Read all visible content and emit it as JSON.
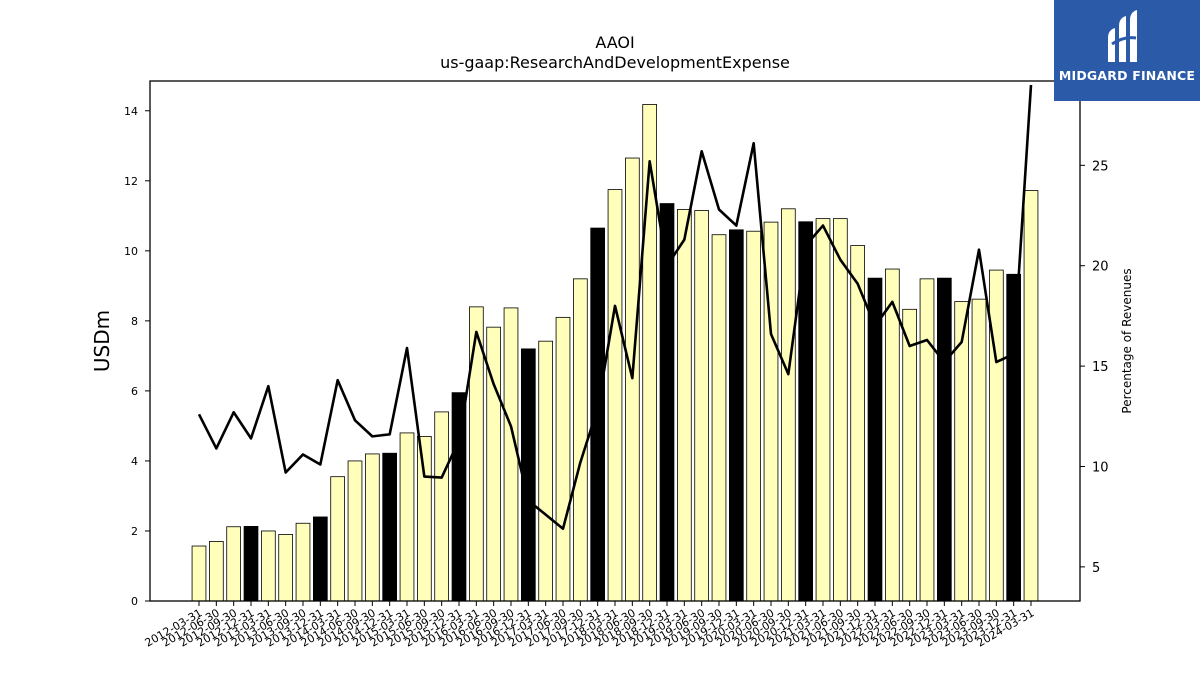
{
  "chart_data": {
    "type": "bar",
    "title": "AAOI",
    "subtitle": "us-gaap:ResearchAndDevelopmentExpense",
    "ylabel": "USDm",
    "y2label": "Percentage of Revenues",
    "ylim": [
      0,
      14.85
    ],
    "y2lim": [
      3.3,
      29.2
    ],
    "yticks": [
      "0",
      "2",
      "4",
      "6",
      "8",
      "10",
      "12",
      "14"
    ],
    "y2ticks": [
      "5",
      "10",
      "15",
      "20",
      "25"
    ],
    "categories": [
      "2012-03-31",
      "2012-06-30",
      "2012-09-30",
      "2012-12-31",
      "2013-03-31",
      "2013-06-30",
      "2013-09-30",
      "2013-12-31",
      "2014-03-31",
      "2014-06-30",
      "2014-09-30",
      "2014-12-31",
      "2015-03-31",
      "2015-06-30",
      "2015-09-30",
      "2015-12-31",
      "2016-03-31",
      "2016-06-30",
      "2016-09-30",
      "2016-12-31",
      "2017-03-31",
      "2017-06-30",
      "2017-09-30",
      "2017-12-31",
      "2018-03-31",
      "2018-06-30",
      "2018-09-30",
      "2018-12-31",
      "2019-03-31",
      "2019-06-30",
      "2019-09-30",
      "2019-12-31",
      "2020-03-31",
      "2020-06-30",
      "2020-09-30",
      "2020-12-31",
      "2021-03-31",
      "2021-06-30",
      "2021-09-30",
      "2021-12-31",
      "2022-03-31",
      "2022-06-30",
      "2022-09-30",
      "2022-12-31",
      "2023-03-31",
      "2023-06-30",
      "2023-09-30",
      "2023-12-31",
      "2024-03-31"
    ],
    "series": [
      {
        "kind": "bar",
        "values": [
          1.57,
          1.7,
          2.12,
          2.13,
          2.0,
          1.9,
          2.22,
          2.4,
          3.55,
          4.0,
          4.2,
          4.22,
          4.8,
          4.7,
          5.4,
          5.95,
          8.4,
          7.82,
          8.37,
          7.2,
          7.42,
          8.1,
          9.2,
          10.65,
          11.75,
          12.65,
          14.18,
          11.35,
          11.18,
          11.15,
          10.46,
          10.6,
          10.56,
          10.82,
          11.2,
          10.83,
          10.92,
          10.92,
          10.15,
          9.22,
          9.48,
          8.33,
          9.2,
          9.22,
          8.55,
          8.62,
          9.45,
          9.33,
          11.72
        ],
        "highlight": [
          false,
          false,
          false,
          true,
          false,
          false,
          false,
          true,
          false,
          false,
          false,
          true,
          false,
          false,
          false,
          true,
          false,
          false,
          false,
          true,
          false,
          false,
          false,
          true,
          false,
          false,
          false,
          true,
          false,
          false,
          false,
          true,
          false,
          false,
          false,
          true,
          false,
          false,
          false,
          true,
          false,
          false,
          false,
          true,
          false,
          false,
          false,
          true,
          false
        ]
      },
      {
        "kind": "line",
        "axis": "right",
        "values": [
          12.6,
          10.9,
          12.7,
          11.4,
          14.0,
          9.7,
          10.6,
          10.1,
          14.3,
          12.3,
          11.5,
          11.6,
          15.9,
          9.5,
          9.45,
          11.3,
          16.7,
          14.1,
          12.0,
          8.3,
          7.6,
          6.9,
          10.2,
          12.9,
          18.0,
          14.4,
          25.2,
          20.0,
          21.3,
          25.7,
          22.8,
          22.0,
          26.1,
          16.6,
          14.6,
          21.0,
          22.0,
          20.3,
          19.1,
          17.0,
          18.2,
          16.0,
          16.3,
          15.2,
          16.2,
          20.8,
          15.2,
          15.6,
          29.0
        ]
      }
    ],
    "colors": {
      "bar": "#ffffbb",
      "bar_highlight": "#000000",
      "line": "#000000",
      "edge": "#000000"
    },
    "grid": false
  },
  "watermark": {
    "text": "MIDGARD FINANCE",
    "bg": "#2b5aa8"
  }
}
